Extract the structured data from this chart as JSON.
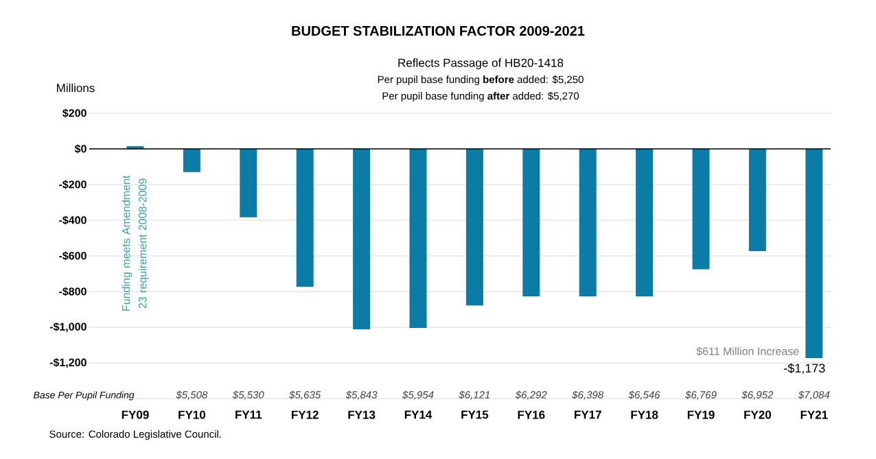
{
  "chart_data": {
    "type": "bar",
    "title": "BUDGET STABILIZATION FACTOR 2009-2021",
    "subtitle": "Reflects Passage of HB20-1418",
    "ylabel": "Millions",
    "categories": [
      "FY09",
      "FY10",
      "FY11",
      "FY12",
      "FY13",
      "FY14",
      "FY15",
      "FY16",
      "FY17",
      "FY18",
      "FY19",
      "FY20",
      "FY21"
    ],
    "values": [
      15,
      -130,
      -384,
      -773,
      -1012,
      -1004,
      -878,
      -827,
      -827,
      -827,
      -675,
      -573,
      -1173
    ],
    "value_labels": [
      null,
      null,
      null,
      null,
      null,
      null,
      null,
      null,
      null,
      null,
      null,
      null,
      "-$1,173"
    ],
    "color": "#0a7ca6",
    "ylim": [
      -1400,
      200
    ],
    "yticks": [
      {
        "value": 200,
        "label": "$200"
      },
      {
        "value": 0,
        "label": "$0"
      },
      {
        "value": -200,
        "label": "-$200"
      },
      {
        "value": -400,
        "label": "-$400"
      },
      {
        "value": -600,
        "label": "-$600"
      },
      {
        "value": -800,
        "label": "-$800"
      },
      {
        "value": -1000,
        "label": "-$1,000"
      },
      {
        "value": -1200,
        "label": "-$1,200"
      },
      {
        "value": -1400,
        "label": null
      }
    ],
    "grid": "y",
    "annotations": [
      "Per pupil base funding **before** added: $5,250",
      "Per pupil base funding **after** added: $5,270",
      "Base Per Pupil Funding",
      "Source: Colorado Legislative Council.",
      "Funding meets Amendment 23 requirement 2008-2009",
      "$611 Million Increase",
      "$5,508",
      "$5,530",
      "$5,635",
      "$5,843",
      "$5,954",
      "$6,121",
      "$6,292",
      "$6,398",
      "$6,546",
      "$6,769",
      "$6,952",
      "$7,084"
    ]
  }
}
